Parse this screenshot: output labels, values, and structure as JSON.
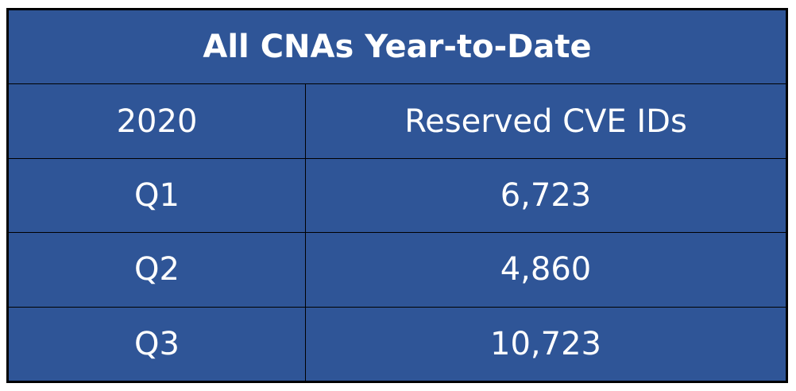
{
  "table": {
    "title": "All CNAs Year-to-Date",
    "header": {
      "col1": "2020",
      "col2": "Reserved CVE IDs"
    },
    "rows": [
      {
        "quarter": "Q1",
        "value": "6,723"
      },
      {
        "quarter": "Q2",
        "value": "4,860"
      },
      {
        "quarter": "Q3",
        "value": "10,723"
      }
    ]
  },
  "colors": {
    "fill": "#2f5597",
    "border": "#000000",
    "text": "#ffffff"
  }
}
